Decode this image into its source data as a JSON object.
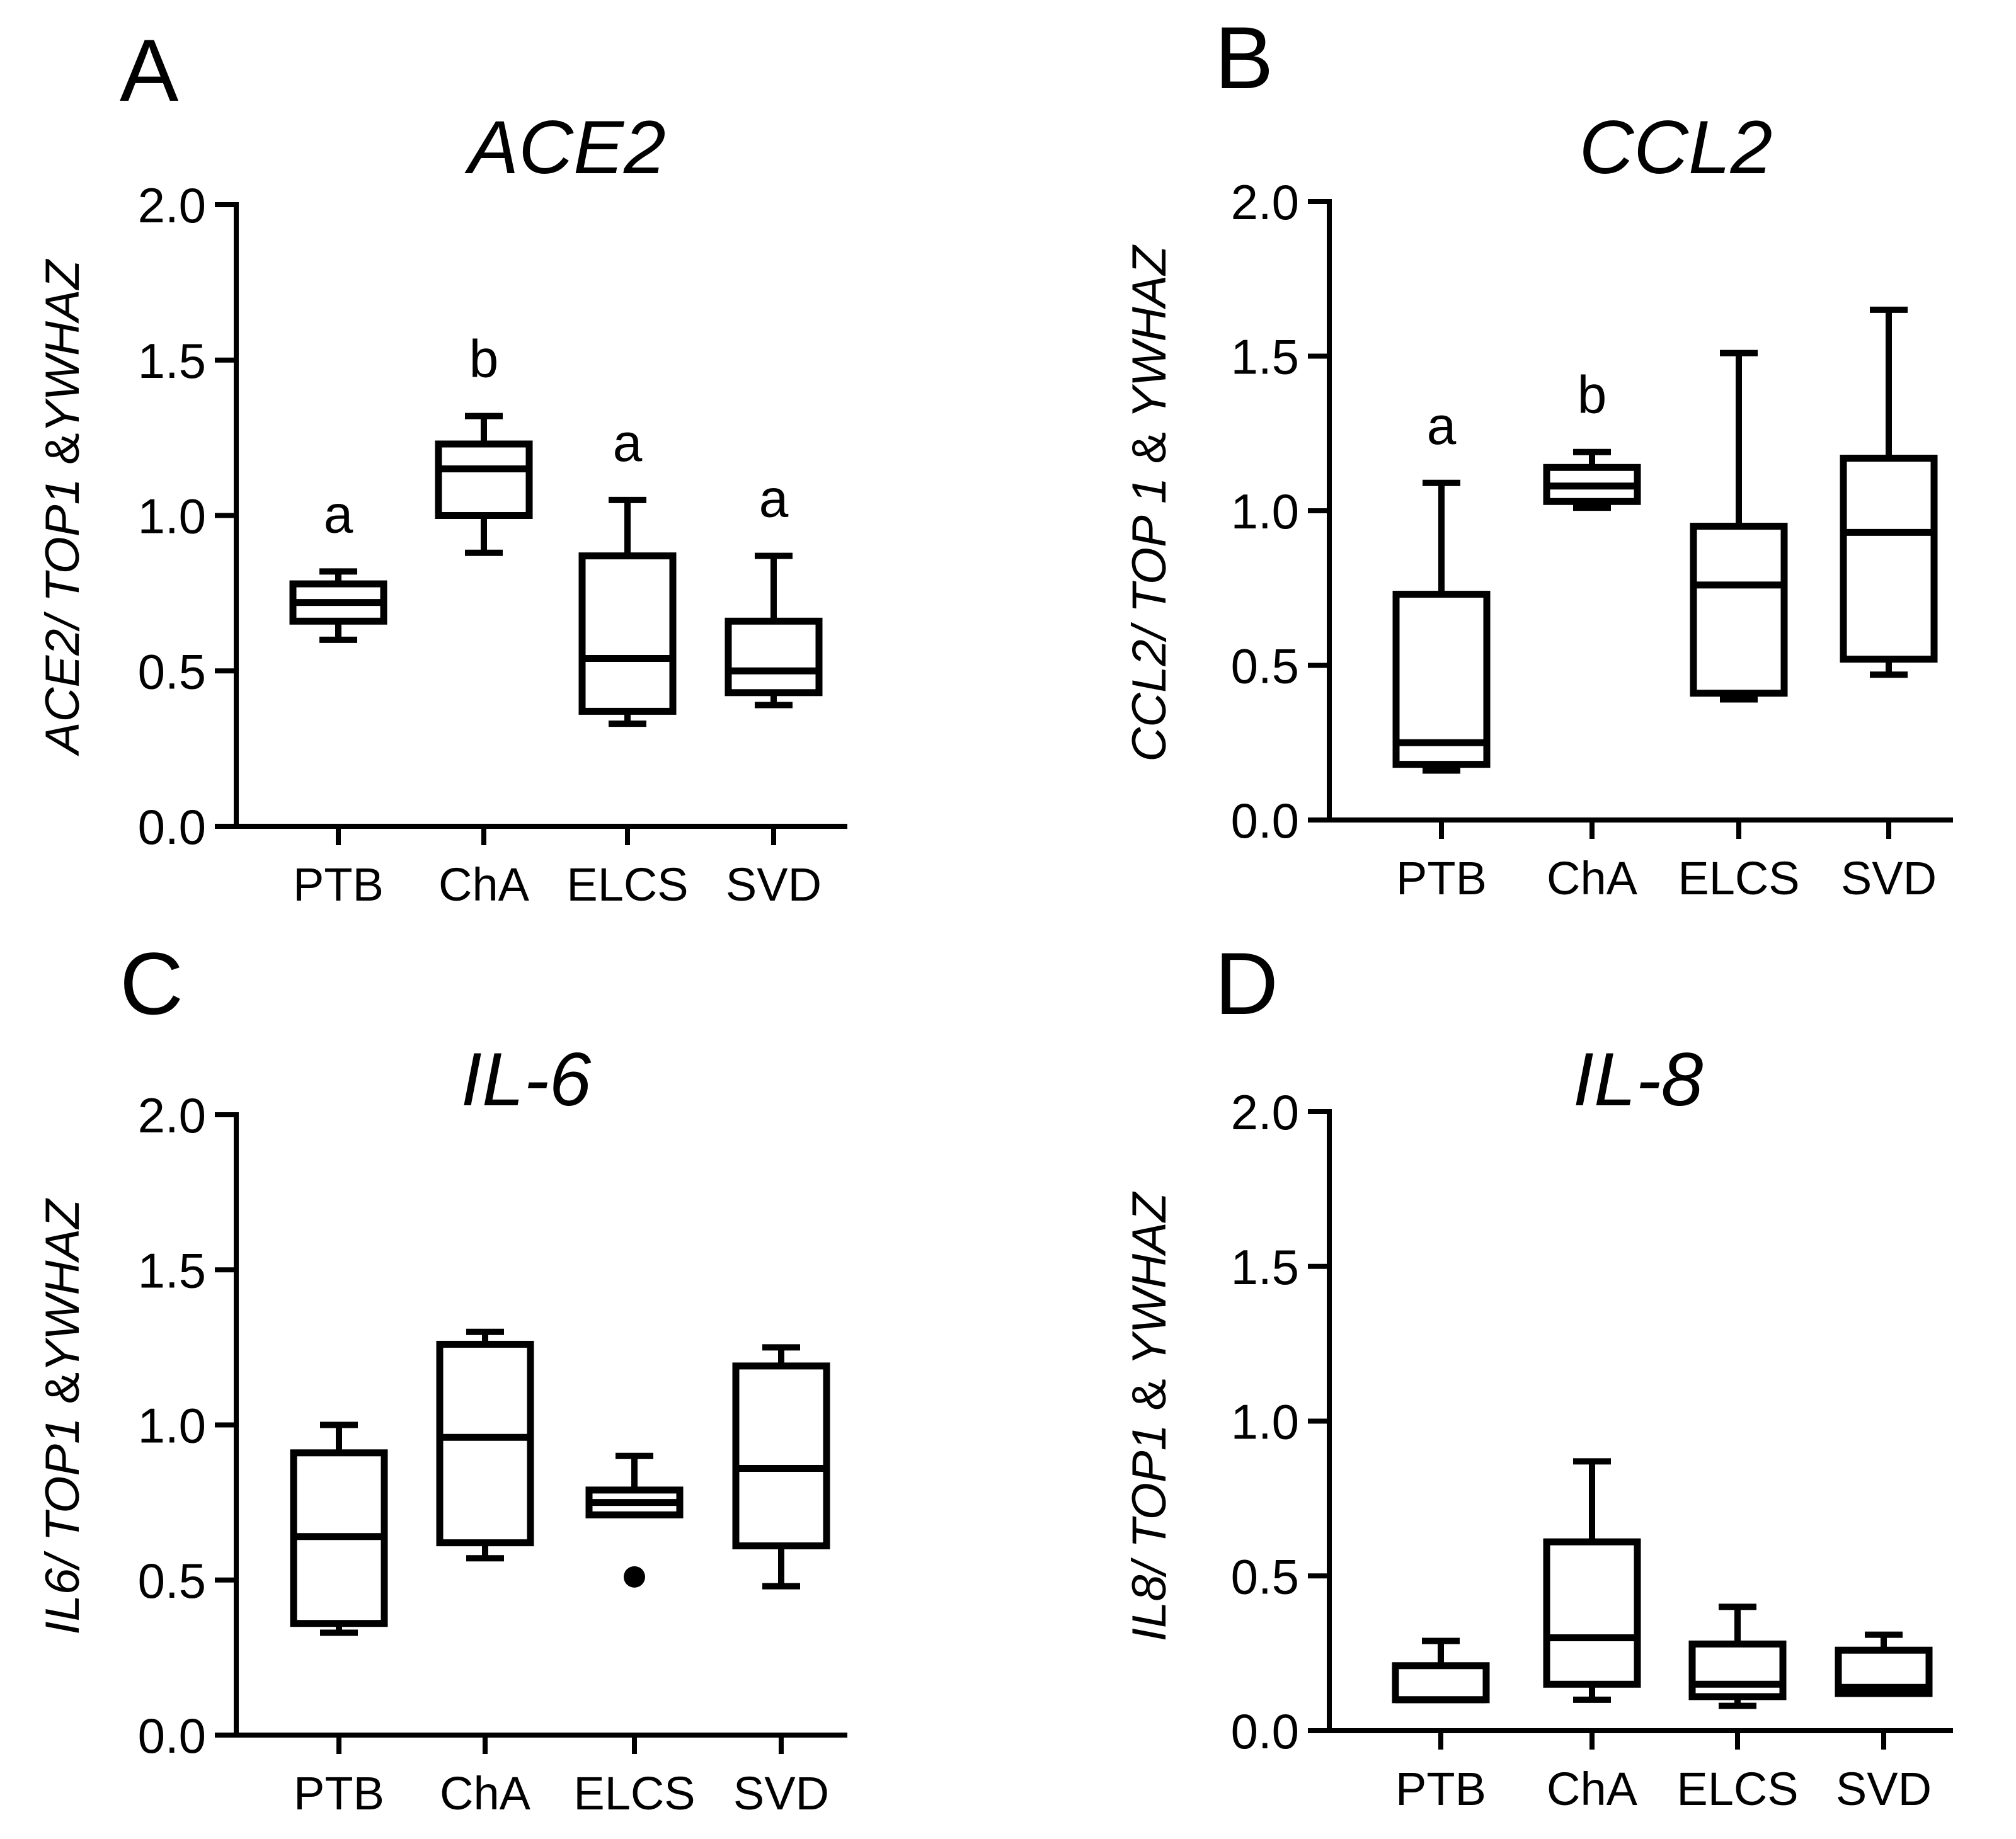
{
  "chart_data": [
    {
      "type": "box",
      "panel": "A",
      "title": "ACE2",
      "ylabel": {
        "italic1": "ACE2/ TOP1",
        "plain": " &",
        "italic2": "YWHAZ"
      },
      "ylim": [
        0,
        2.0
      ],
      "yticks": [
        "0.0",
        "0.5",
        "1.0",
        "1.5",
        "2.0"
      ],
      "categories": [
        "PTB",
        "ChA",
        "ELCS",
        "SVD"
      ],
      "boxes": [
        {
          "min": 0.6,
          "q1": 0.66,
          "median": 0.72,
          "q3": 0.78,
          "max": 0.82
        },
        {
          "min": 0.88,
          "q1": 1.0,
          "median": 1.15,
          "q3": 1.23,
          "max": 1.32
        },
        {
          "min": 0.33,
          "q1": 0.37,
          "median": 0.54,
          "q3": 0.87,
          "max": 1.05
        },
        {
          "min": 0.39,
          "q1": 0.43,
          "median": 0.5,
          "q3": 0.66,
          "max": 0.87
        }
      ],
      "outliers": [],
      "significance": [
        "a",
        "b",
        "a",
        "a"
      ]
    },
    {
      "type": "box",
      "panel": "B",
      "title": "CCL2",
      "ylabel": {
        "italic1": "CCL2/ TOP 1",
        "plain": " & ",
        "italic2": "YWHAZ"
      },
      "ylim": [
        0,
        2.0
      ],
      "yticks": [
        "0.0",
        "0.5",
        "1.0",
        "1.5",
        "2.0"
      ],
      "categories": [
        "PTB",
        "ChA",
        "ELCS",
        "SVD"
      ],
      "boxes": [
        {
          "min": 0.16,
          "q1": 0.18,
          "median": 0.25,
          "q3": 0.73,
          "max": 1.09
        },
        {
          "min": 1.01,
          "q1": 1.03,
          "median": 1.08,
          "q3": 1.14,
          "max": 1.19
        },
        {
          "min": 0.39,
          "q1": 0.41,
          "median": 0.76,
          "q3": 0.95,
          "max": 1.51
        },
        {
          "min": 0.47,
          "q1": 0.52,
          "median": 0.93,
          "q3": 1.17,
          "max": 1.65
        }
      ],
      "outliers": [],
      "significance": [
        "a",
        "b",
        "",
        ""
      ]
    },
    {
      "type": "box",
      "panel": "C",
      "title": "IL-6",
      "ylabel": {
        "italic1": "IL6/ TOP1",
        "plain": " &",
        "italic2": "YWHAZ"
      },
      "ylim": [
        0,
        2.0
      ],
      "yticks": [
        "0.0",
        "0.5",
        "1.0",
        "1.5",
        "2.0"
      ],
      "categories": [
        "PTB",
        "ChA",
        "ELCS",
        "SVD"
      ],
      "boxes": [
        {
          "min": 0.33,
          "q1": 0.36,
          "median": 0.64,
          "q3": 0.91,
          "max": 1.0
        },
        {
          "min": 0.57,
          "q1": 0.62,
          "median": 0.96,
          "q3": 1.26,
          "max": 1.3
        },
        {
          "min": 0.71,
          "q1": 0.71,
          "median": 0.75,
          "q3": 0.79,
          "max": 0.9
        },
        {
          "min": 0.48,
          "q1": 0.61,
          "median": 0.86,
          "q3": 1.19,
          "max": 1.25
        }
      ],
      "outliers": [
        {
          "category": "ELCS",
          "value": 0.51
        }
      ],
      "significance": [
        "",
        "",
        "",
        ""
      ]
    },
    {
      "type": "box",
      "panel": "D",
      "title": "IL-8",
      "ylabel": {
        "italic1": "IL8/ TOP1",
        "plain": " & ",
        "italic2": "YWHAZ"
      },
      "ylim": [
        0,
        2.0
      ],
      "yticks": [
        "0.0",
        "0.5",
        "1.0",
        "1.5",
        "2.0"
      ],
      "categories": [
        "PTB",
        "ChA",
        "ELCS",
        "SVD"
      ],
      "boxes": [
        {
          "min": 0.1,
          "q1": 0.1,
          "median": 0.1,
          "q3": 0.21,
          "max": 0.29
        },
        {
          "min": 0.1,
          "q1": 0.15,
          "median": 0.3,
          "q3": 0.61,
          "max": 0.87
        },
        {
          "min": 0.08,
          "q1": 0.11,
          "median": 0.15,
          "q3": 0.28,
          "max": 0.4
        },
        {
          "min": 0.12,
          "q1": 0.12,
          "median": 0.14,
          "q3": 0.26,
          "max": 0.31
        }
      ],
      "outliers": [],
      "significance": [
        "",
        "",
        "",
        ""
      ]
    }
  ]
}
